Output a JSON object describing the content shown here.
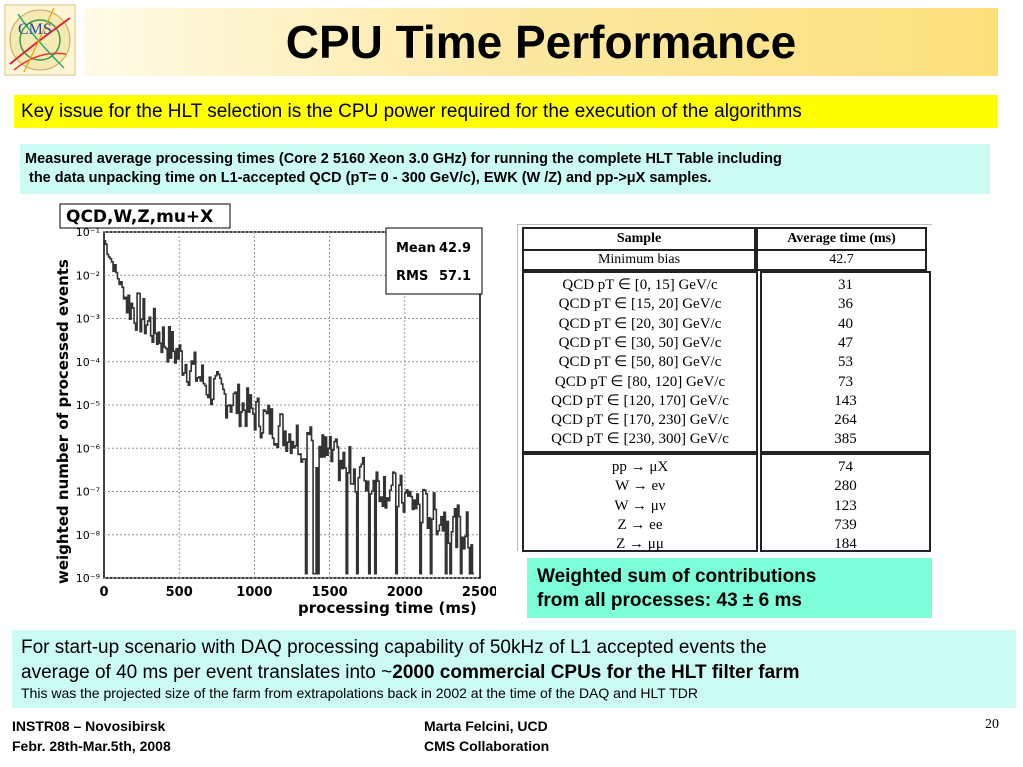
{
  "logo": {
    "text": "CMS"
  },
  "title": "CPU Time Performance",
  "key_issue": "Key issue for the HLT selection is the CPU power required for the execution of the algorithms",
  "measured": {
    "line1": "Measured average processing times (Core 2 5160 Xeon 3.0 GHz) for running the complete HLT Table including",
    "line2": "the data unpacking time on L1-accepted QCD (pT=  0 - 300 GeV/c), EWK (W /Z) and pp->μX samples."
  },
  "chart_data": {
    "type": "histogram",
    "title": "QCD,W,Z,mu+X",
    "xlabel": "processing time (ms)",
    "ylabel": "weighted number of processed events",
    "xlim": [
      0,
      2500
    ],
    "ylim": [
      1e-09,
      0.1
    ],
    "log_y": true,
    "grid": true,
    "x_ticks": [
      "0",
      "500",
      "1000",
      "1500",
      "2000",
      "2500"
    ],
    "y_ticks": [
      "10⁻¹",
      "10⁻²",
      "10⁻³",
      "10⁻⁴",
      "10⁻⁵",
      "10⁻⁶",
      "10⁻⁷",
      "10⁻⁸",
      "10⁻⁹"
    ],
    "stats": [
      {
        "label": "Mean",
        "value": "42.9"
      },
      {
        "label": "RMS",
        "value": "57.1"
      }
    ]
  },
  "table": {
    "headers": [
      "Sample",
      "Average time (ms)"
    ],
    "minbias": {
      "sample": "Minimum bias",
      "time": "42.7"
    },
    "qcd": [
      {
        "sample": "QCD pT ∈ [0, 15] GeV/c",
        "time": "31"
      },
      {
        "sample": "QCD pT ∈ [15, 20] GeV/c",
        "time": "36"
      },
      {
        "sample": "QCD pT ∈ [20, 30] GeV/c",
        "time": "40"
      },
      {
        "sample": "QCD pT ∈ [30, 50] GeV/c",
        "time": "47"
      },
      {
        "sample": "QCD pT ∈ [50, 80] GeV/c",
        "time": "53"
      },
      {
        "sample": "QCD pT ∈ [80, 120] GeV/c",
        "time": "73"
      },
      {
        "sample": "QCD pT ∈ [120, 170] GeV/c",
        "time": "143"
      },
      {
        "sample": "QCD pT ∈ [170, 230] GeV/c",
        "time": "264"
      },
      {
        "sample": "QCD pT ∈ [230, 300] GeV/c",
        "time": "385"
      }
    ],
    "ewk": [
      {
        "sample": "pp → μX",
        "time": "74"
      },
      {
        "sample": "W → eν",
        "time": "280"
      },
      {
        "sample": "W → μν",
        "time": "123"
      },
      {
        "sample": "Z → ee",
        "time": "739"
      },
      {
        "sample": "Z → μμ",
        "time": "184"
      }
    ]
  },
  "weighted_sum": {
    "line1": "Weighted sum of contributions",
    "line2": "from all processes: 43 ± 6 ms"
  },
  "bottom": {
    "line1": "For start-up scenario with DAQ processing capability of 50kHz of L1 accepted events the",
    "line2_pre": "average of 40 ms per event translates into ~",
    "line2_bold": "2000 commercial CPUs for the HLT filter farm",
    "line3": "This was the projected size of the farm  from extrapolations back in 2002 at the time of the DAQ and HLT TDR"
  },
  "footer": {
    "left1": "INSTR08 – Novosibirsk",
    "left2": "Febr. 28th-Mar.5th, 2008",
    "mid1": "Marta Felcini, UCD",
    "mid2": "CMS Collaboration",
    "page": "20"
  }
}
